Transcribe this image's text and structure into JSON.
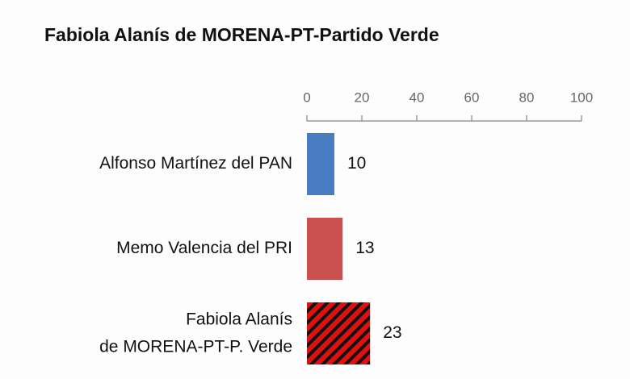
{
  "chart_data": {
    "type": "hbar",
    "title": "Fabiola Alanís de MORENA-PT-Partido Verde",
    "categories": [
      "Alfonso Martínez del PAN",
      "Memo Valencia del PRI",
      "Fabiola Alanís\nde MORENA-PT-P. Verde"
    ],
    "values": [
      10,
      13,
      23
    ],
    "colors": [
      "#4a7cc1",
      "#c9504f",
      "#e01010"
    ],
    "hatched": [
      false,
      false,
      true
    ],
    "xlim": [
      0,
      100
    ],
    "xticks": [
      0,
      20,
      40,
      60,
      80,
      100
    ],
    "axis_position": "top"
  }
}
